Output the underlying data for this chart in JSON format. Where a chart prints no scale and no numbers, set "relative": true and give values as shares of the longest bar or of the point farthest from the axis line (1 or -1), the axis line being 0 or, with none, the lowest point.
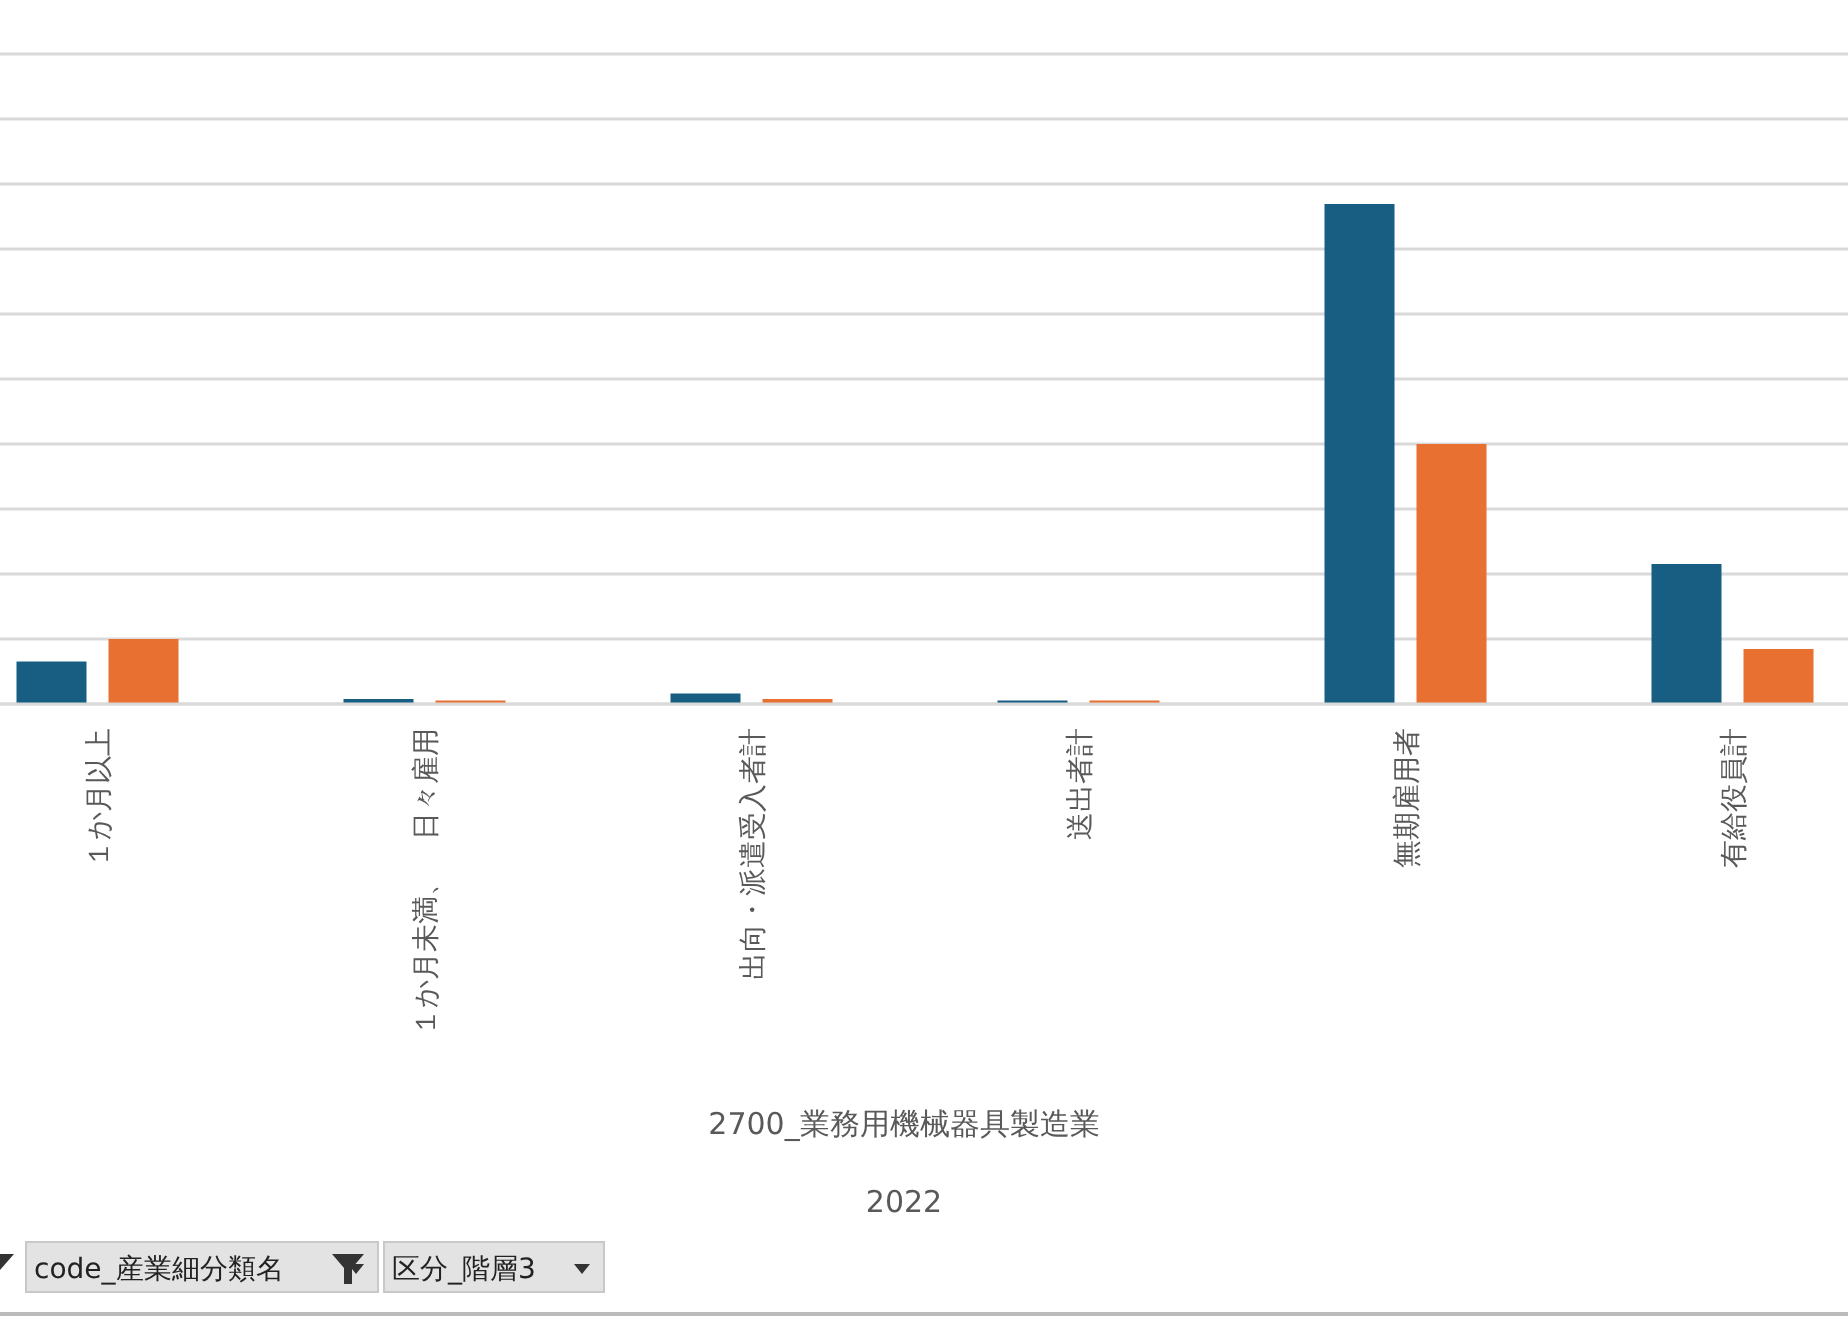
{
  "chart_data": {
    "type": "bar",
    "relative": true,
    "grid": "y",
    "categories": [
      "１か月以上",
      "１か月未満、　日々雇用",
      "出向・派遣受入者計",
      "送出者計",
      "無期雇用者",
      "有給役員計"
    ],
    "xlabel": "2700_業務用機械器具製造業",
    "series": [
      {
        "color": "#175e82",
        "values": [
          0.085,
          0.01,
          0.021,
          0.007,
          1,
          0.28
        ]
      },
      {
        "color": "#e87031",
        "values": [
          0.13,
          0.007,
          0.01,
          0.007,
          0.52,
          0.11
        ]
      }
    ],
    "annotations": [
      "2022",
      "code_産業細分類名",
      "区分_階層3"
    ]
  }
}
